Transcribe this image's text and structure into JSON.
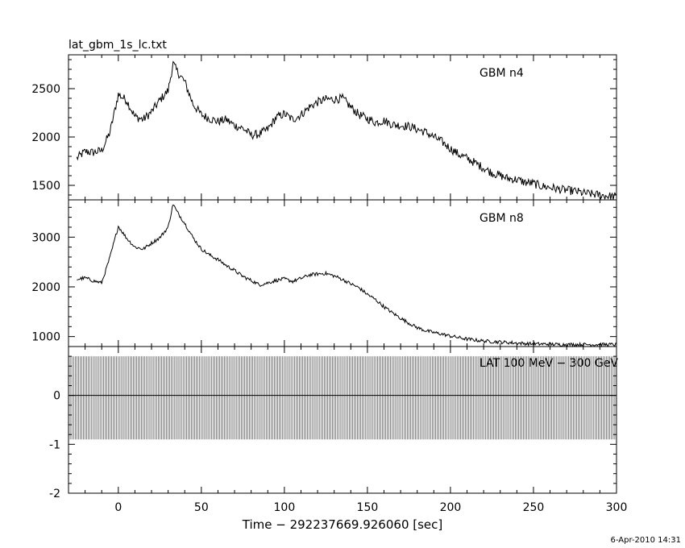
{
  "file_title": "lat_gbm_1s_lc.txt",
  "footer_stamp": "6-Apr-2010 14:31",
  "colors": {
    "ink": "#000000",
    "background": "#ffffff"
  },
  "chart_data": [
    {
      "type": "line",
      "label": "GBM n4",
      "xlim": [
        -30,
        300
      ],
      "ylim": [
        1350,
        2850
      ],
      "yticks": [
        1500,
        2000,
        2500
      ],
      "x": [
        -25,
        -20,
        -15,
        -10,
        -5,
        0,
        5,
        10,
        15,
        20,
        25,
        30,
        33,
        35,
        40,
        45,
        50,
        55,
        60,
        65,
        70,
        75,
        80,
        85,
        90,
        95,
        100,
        105,
        110,
        115,
        120,
        125,
        130,
        135,
        140,
        145,
        150,
        155,
        160,
        165,
        170,
        175,
        180,
        185,
        190,
        195,
        200,
        205,
        210,
        215,
        220,
        225,
        230,
        235,
        240,
        245,
        250,
        255,
        260,
        265,
        270,
        275,
        280,
        285,
        290,
        295,
        300
      ],
      "values": [
        1780,
        1850,
        1840,
        1860,
        2050,
        2440,
        2380,
        2210,
        2180,
        2260,
        2380,
        2480,
        2760,
        2690,
        2570,
        2340,
        2230,
        2190,
        2160,
        2180,
        2120,
        2090,
        2020,
        2030,
        2080,
        2200,
        2240,
        2180,
        2230,
        2310,
        2360,
        2390,
        2390,
        2400,
        2310,
        2230,
        2190,
        2150,
        2170,
        2130,
        2120,
        2110,
        2080,
        2050,
        2000,
        1950,
        1880,
        1820,
        1780,
        1730,
        1680,
        1630,
        1600,
        1570,
        1560,
        1530,
        1520,
        1490,
        1480,
        1460,
        1450,
        1440,
        1420,
        1410,
        1400,
        1390,
        1380
      ]
    },
    {
      "type": "line",
      "label": "GBM n8",
      "xlim": [
        -30,
        300
      ],
      "ylim": [
        800,
        3750
      ],
      "yticks": [
        1000,
        2000,
        3000
      ],
      "x": [
        -25,
        -20,
        -15,
        -10,
        -5,
        0,
        5,
        10,
        15,
        20,
        25,
        30,
        33,
        35,
        40,
        45,
        50,
        55,
        60,
        65,
        70,
        75,
        80,
        85,
        90,
        95,
        100,
        105,
        110,
        115,
        120,
        125,
        130,
        135,
        140,
        145,
        150,
        155,
        160,
        165,
        170,
        175,
        180,
        185,
        190,
        195,
        200,
        205,
        210,
        215,
        220,
        225,
        230,
        235,
        240,
        245,
        250,
        255,
        260,
        265,
        270,
        275,
        280,
        285,
        290,
        295,
        300
      ],
      "values": [
        2150,
        2180,
        2120,
        2080,
        2600,
        3220,
        2980,
        2800,
        2760,
        2880,
        2990,
        3200,
        3670,
        3530,
        3280,
        2990,
        2760,
        2640,
        2550,
        2430,
        2330,
        2210,
        2130,
        2040,
        2080,
        2130,
        2160,
        2110,
        2170,
        2240,
        2260,
        2270,
        2220,
        2150,
        2060,
        1980,
        1850,
        1740,
        1600,
        1480,
        1370,
        1270,
        1180,
        1120,
        1080,
        1050,
        1010,
        980,
        950,
        930,
        910,
        900,
        890,
        880,
        870,
        860,
        850,
        850,
        850,
        840,
        840,
        840,
        840,
        840,
        840,
        840,
        840
      ]
    },
    {
      "type": "bar",
      "label": "LAT 100 MeV − 300 GeV",
      "xlim": [
        -30,
        300
      ],
      "ylim": [
        -2,
        1
      ],
      "yticks": [
        -2,
        -1,
        0
      ],
      "band_top": 0.8,
      "band_bottom": -0.9,
      "bin_width": 1,
      "xticks": [
        0,
        50,
        100,
        150,
        200,
        250,
        300
      ],
      "xlabel": "Time − 292237669.926060 [sec]"
    }
  ]
}
